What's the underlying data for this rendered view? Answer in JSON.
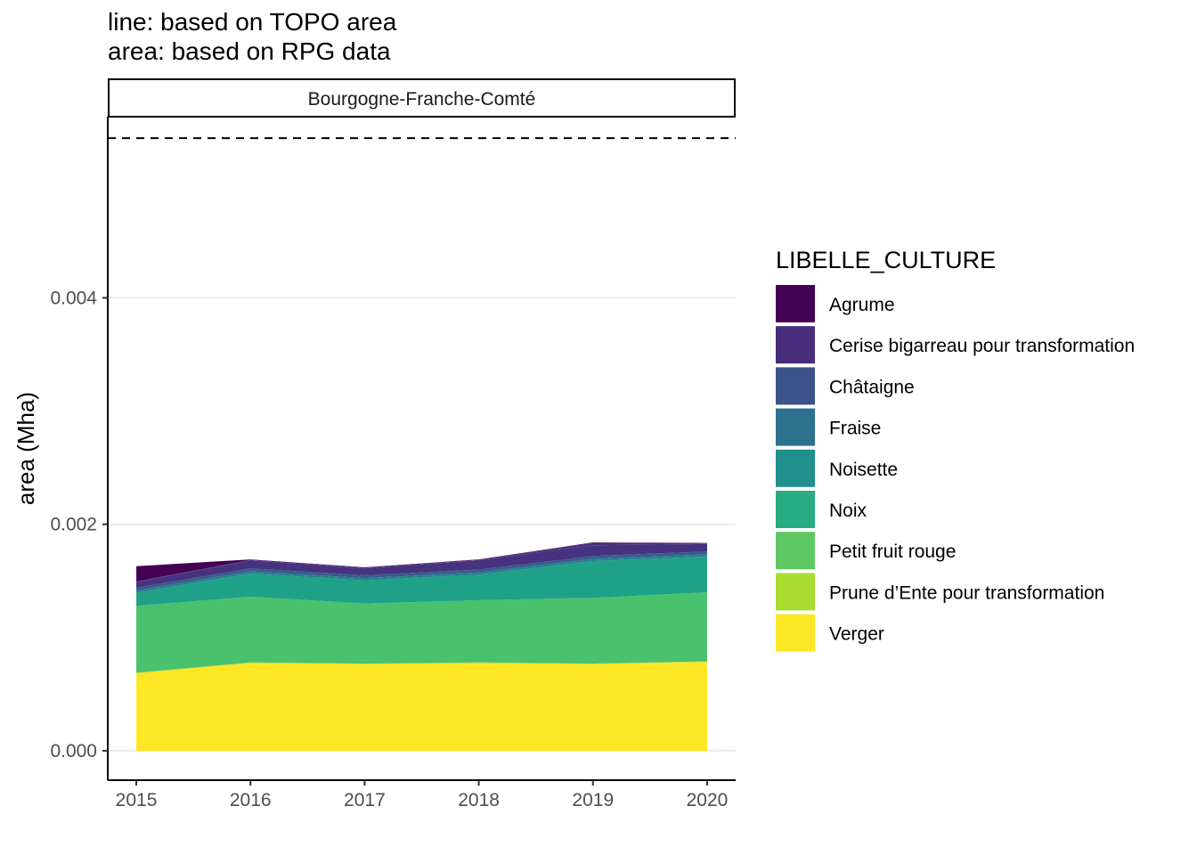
{
  "subtitle_lines": [
    "line: based on TOPO area",
    "area: based on RPG data"
  ],
  "facet_label": "Bourgogne-Franche-Comté",
  "chart_data": {
    "type": "area",
    "stacked": true,
    "x": [
      2015,
      2016,
      2017,
      2018,
      2019,
      2020
    ],
    "xticks": [
      "2015",
      "2016",
      "2017",
      "2018",
      "2019",
      "2020"
    ],
    "ylabel": "area (Mha)",
    "xlabel": "",
    "ylim": [
      -0.00026,
      0.0056
    ],
    "yticks": [
      0.0,
      0.002,
      0.004
    ],
    "ytick_labels": [
      "0.000",
      "0.002",
      "0.004"
    ],
    "reference_line": {
      "style": "dashed",
      "value": 0.00541
    },
    "grid": "horizontal-major",
    "legend": {
      "title": "LIBELLE_CULTURE",
      "position": "right"
    },
    "series": [
      {
        "name": "Verger",
        "color": "#FDE725",
        "values": [
          0.000685,
          0.000775,
          0.000765,
          0.000775,
          0.000765,
          0.000785
        ]
      },
      {
        "name": "Prune d’Ente pour transformation",
        "color": "#A0DA39",
        "values": [
          5e-06,
          5e-06,
          5e-06,
          5e-06,
          5e-06,
          5e-06
        ]
      },
      {
        "name": "Petit fruit rouge",
        "color": "#4AC16D",
        "values": [
          0.00059,
          0.00058,
          0.00053,
          0.00055,
          0.00058,
          0.00061
        ]
      },
      {
        "name": "Noix",
        "color": "#1FA187",
        "values": [
          0.000115,
          0.000205,
          0.000205,
          0.000225,
          0.000325,
          0.000315
        ]
      },
      {
        "name": "Noisette",
        "color": "#277F8E",
        "values": [
          2e-05,
          2e-05,
          2e-05,
          2e-05,
          2e-05,
          2e-05
        ]
      },
      {
        "name": "Fraise",
        "color": "#365C8D",
        "values": [
          2.5e-05,
          2.5e-05,
          2.5e-05,
          2.5e-05,
          2.5e-05,
          2.5e-05
        ]
      },
      {
        "name": "Châtaigne",
        "color": "#46327E",
        "values": [
          5e-05,
          7e-05,
          6e-05,
          8e-05,
          9.5e-05,
          6.5e-05
        ]
      },
      {
        "name": "Cerise bigarreau pour transformation",
        "color": "#46327E",
        "values": [
          5e-06,
          5e-06,
          5e-06,
          5e-06,
          2e-05,
          5e-06
        ]
      },
      {
        "name": "Agrume",
        "color": "#440154",
        "values": [
          0.000135,
          5e-06,
          5e-06,
          5e-06,
          5e-06,
          5e-06
        ]
      }
    ],
    "legend_entries": [
      {
        "name": "Agrume",
        "color": "#440154"
      },
      {
        "name": "Cerise bigarreau pour transformation",
        "color": "#472D7B"
      },
      {
        "name": "Châtaigne",
        "color": "#3B528B"
      },
      {
        "name": "Fraise",
        "color": "#2C728E"
      },
      {
        "name": "Noisette",
        "color": "#21908C"
      },
      {
        "name": "Noix",
        "color": "#27AD81"
      },
      {
        "name": "Petit fruit rouge",
        "color": "#5DC863"
      },
      {
        "name": "Prune d’Ente pour transformation",
        "color": "#AADC32"
      },
      {
        "name": "Verger",
        "color": "#FDE725"
      }
    ]
  }
}
